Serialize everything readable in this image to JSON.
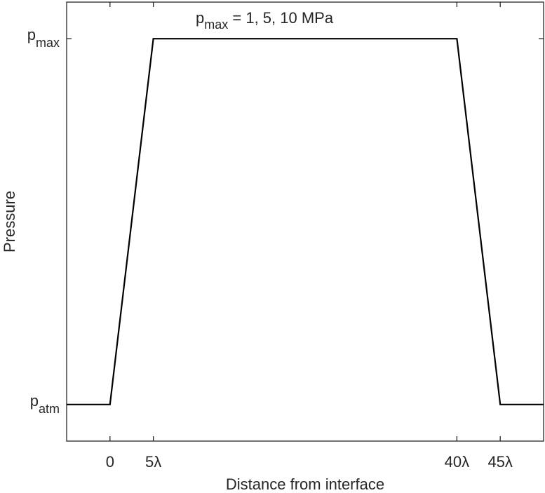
{
  "chart_data": {
    "type": "line",
    "xlabel": "Distance from interface",
    "ylabel": "Pressure",
    "x_unit": "λ",
    "xlim": [
      -5,
      50
    ],
    "ylim": [
      -0.1,
      1.1
    ],
    "grid": false,
    "legend": "none",
    "series": [
      {
        "x": [
          -5,
          0,
          5,
          40,
          45,
          50
        ],
        "y": [
          0,
          0,
          1,
          1,
          0,
          0
        ]
      }
    ],
    "x_ticks": [
      {
        "value": 0,
        "label": "0"
      },
      {
        "value": 5,
        "label": "5λ"
      },
      {
        "value": 40,
        "label": "40λ"
      },
      {
        "value": 45,
        "label": "45λ"
      }
    ],
    "y_ticks": [
      {
        "value": 0,
        "base": "p",
        "sub": "atm"
      },
      {
        "value": 1,
        "base": "p",
        "sub": "max"
      }
    ],
    "annotation": {
      "x": 22,
      "y": 1,
      "base": "p",
      "sub": "max",
      "text": " = 1, 5, 10 MPa"
    },
    "colors": {
      "line": "#000000",
      "axes": "#262626"
    }
  }
}
